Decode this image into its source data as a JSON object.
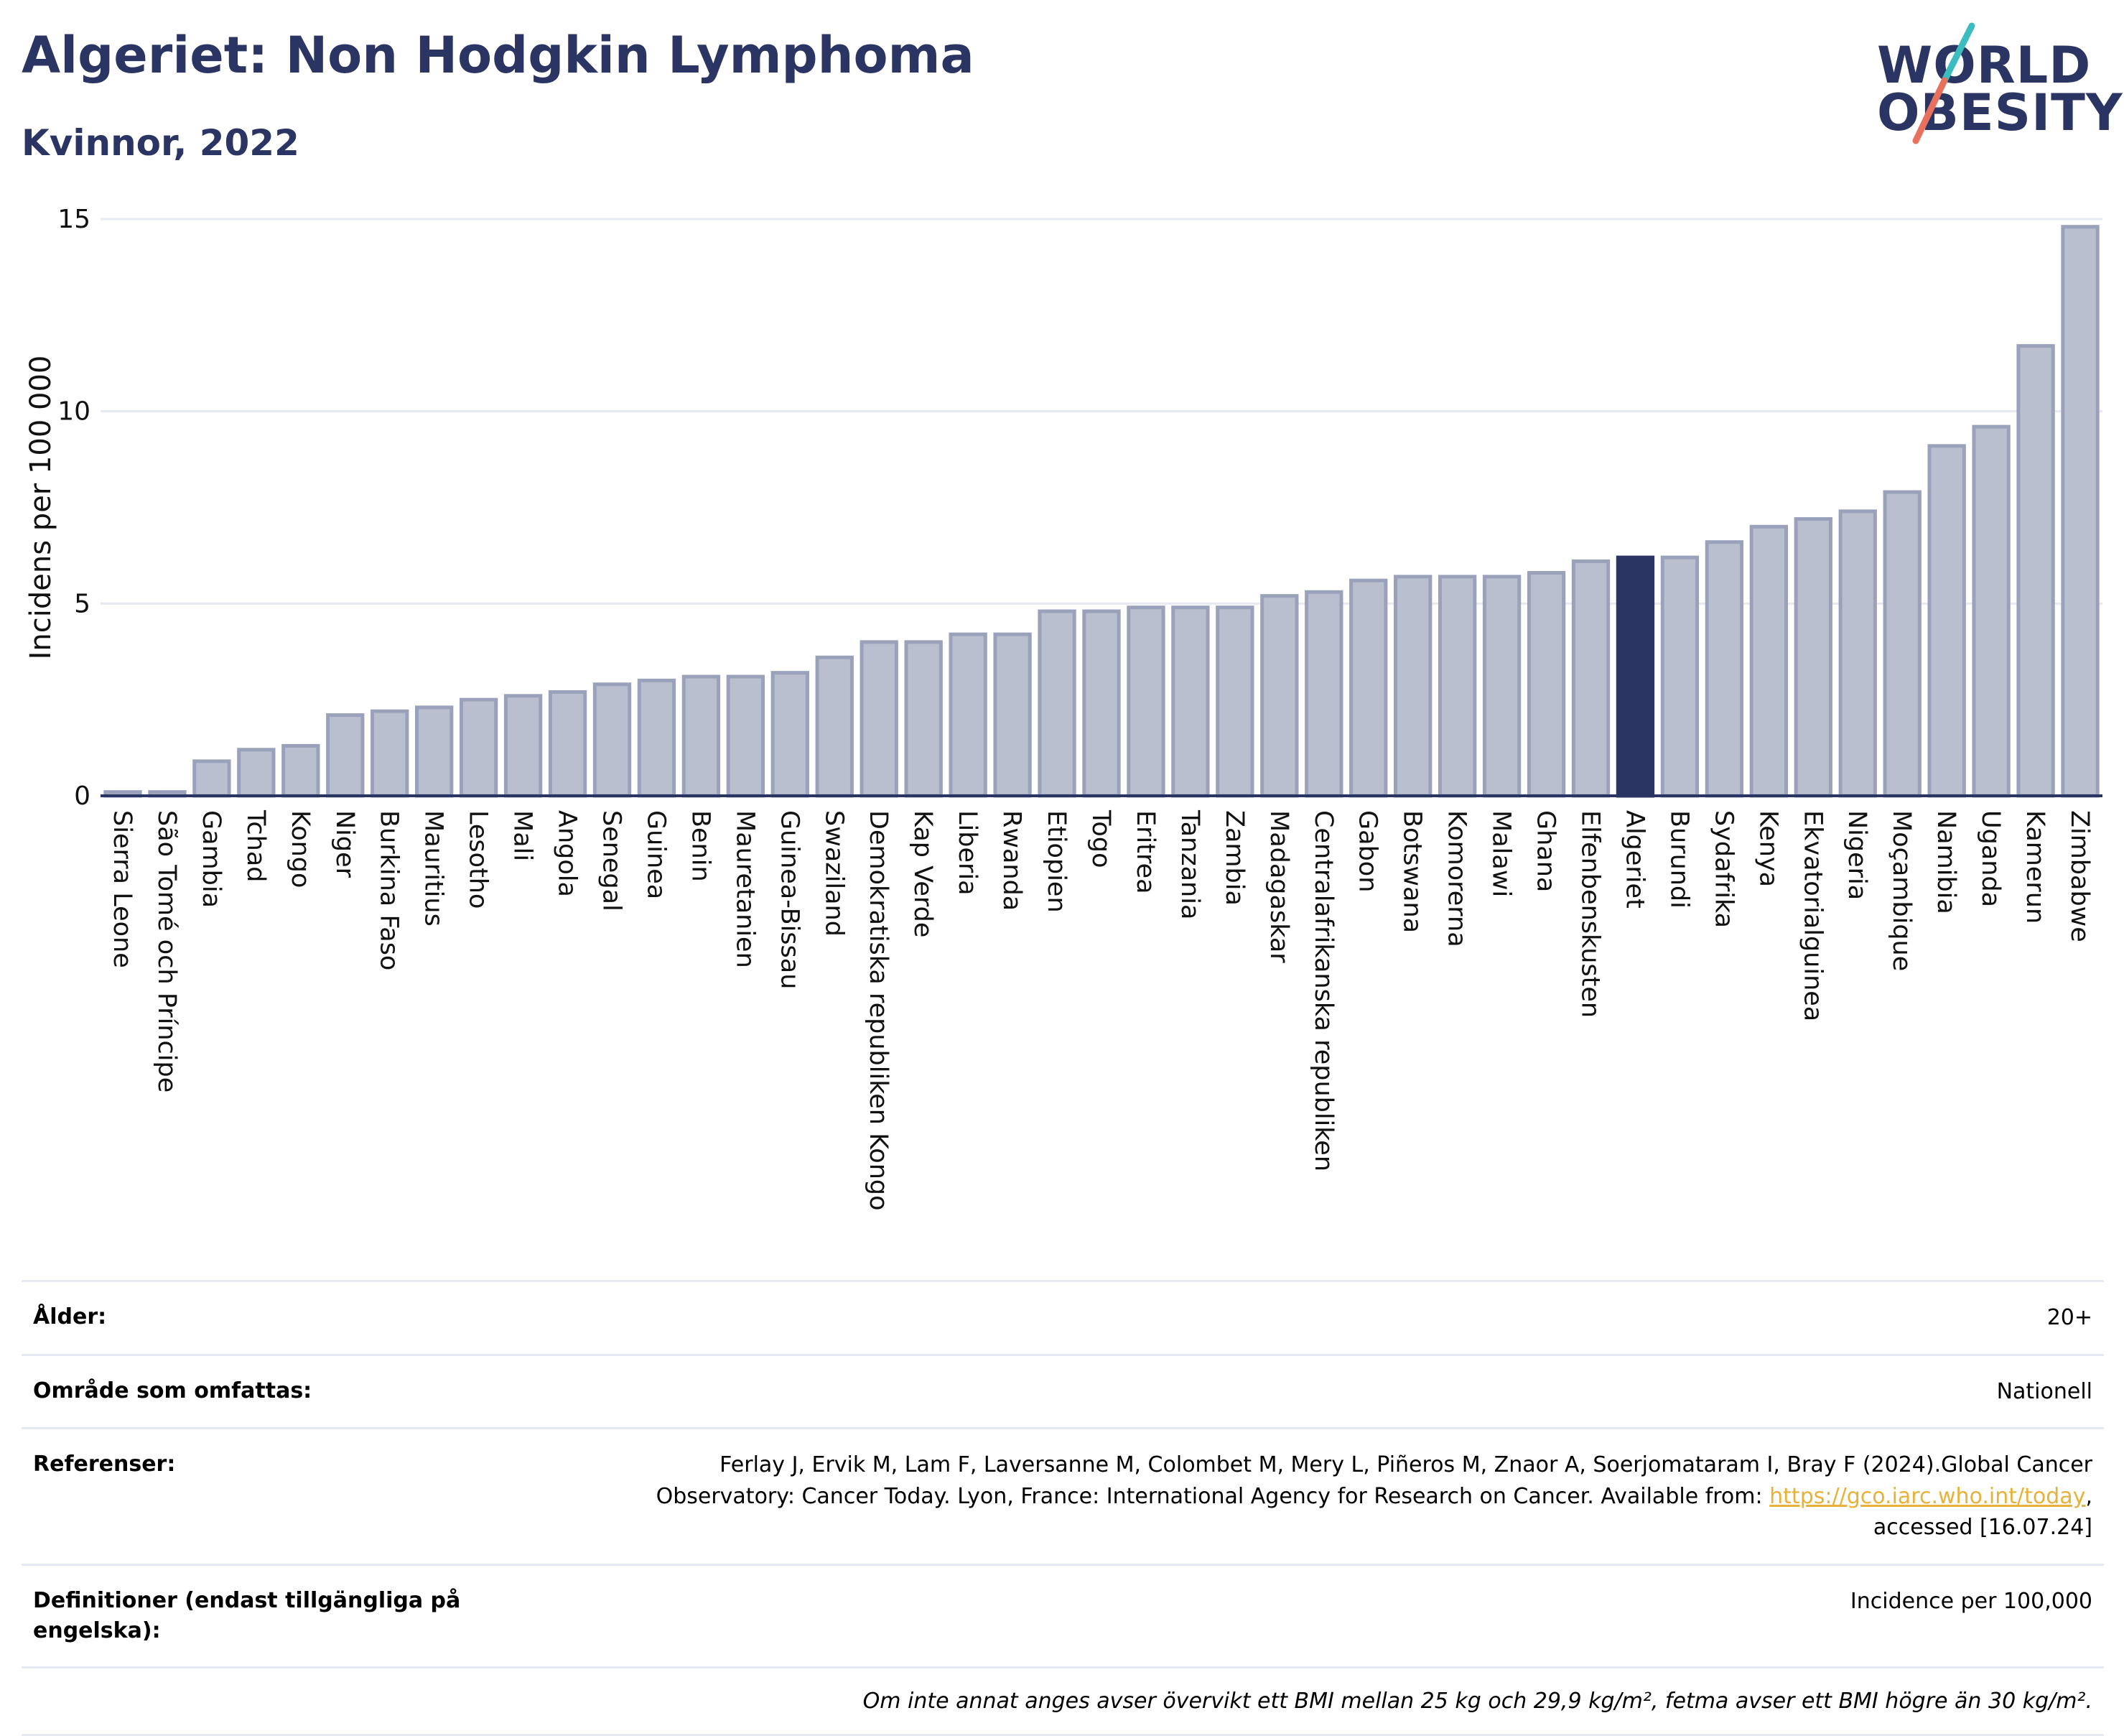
{
  "header": {
    "title": "Algeriet: Non Hodgkin Lymphoma",
    "subtitle": "Kvinnor, 2022"
  },
  "logo": {
    "line1": "WORLD",
    "line2": "OBESITY",
    "slash_colors": [
      "#3bbdbf",
      "#e8715d"
    ]
  },
  "chart_data": {
    "type": "bar",
    "ylabel": "Incidens per 100 000",
    "ylim": [
      0,
      15
    ],
    "yticks": [
      0,
      5,
      10,
      15
    ],
    "grid": true,
    "highlight": "Algeriet",
    "colors": {
      "bar": "#b9bfce",
      "bar_edge": "#9aa2bb",
      "highlight": "#2b3563",
      "grid": "#e6e9f2",
      "axis": "#2b3563"
    },
    "categories": [
      "Sierra Leone",
      "São Tomé och Príncipe",
      "Gambia",
      "Tchad",
      "Kongo",
      "Niger",
      "Burkina Faso",
      "Mauritius",
      "Lesotho",
      "Mali",
      "Angola",
      "Senegal",
      "Guinea",
      "Benin",
      "Mauretanien",
      "Guinea-Bissau",
      "Swaziland",
      "Demokratiska republiken Kongo",
      "Kap Verde",
      "Liberia",
      "Rwanda",
      "Etiopien",
      "Togo",
      "Eritrea",
      "Tanzania",
      "Zambia",
      "Madagaskar",
      "Centralafrikanska republiken",
      "Gabon",
      "Botswana",
      "Komorerna",
      "Malawi",
      "Ghana",
      "Elfenbenskusten",
      "Algeriet",
      "Burundi",
      "Sydafrika",
      "Kenya",
      "Ekvatorialguinea",
      "Nigeria",
      "Moçambique",
      "Namibia",
      "Uganda",
      "Kamerun",
      "Zimbabwe"
    ],
    "values": [
      0.1,
      0.1,
      0.9,
      1.2,
      1.3,
      2.1,
      2.2,
      2.3,
      2.5,
      2.6,
      2.7,
      2.9,
      3.0,
      3.1,
      3.1,
      3.2,
      3.6,
      4.0,
      4.0,
      4.2,
      4.2,
      4.8,
      4.8,
      4.9,
      4.9,
      4.9,
      5.2,
      5.3,
      5.6,
      5.7,
      5.7,
      5.7,
      5.8,
      6.1,
      6.2,
      6.2,
      6.6,
      7.0,
      7.2,
      7.4,
      7.9,
      9.1,
      9.6,
      11.7,
      14.8
    ]
  },
  "info": {
    "age_label": "Ålder:",
    "age_value": "20+",
    "area_label": "Område som omfattas:",
    "area_value": "Nationell",
    "refs_label": "Referenser:",
    "refs_text_1": "Ferlay J, Ervik M, Lam F, Laversanne M, Colombet M, Mery L, Piñeros M, Znaor A, Soerjomataram I, Bray F (2024).Global Cancer",
    "refs_text_2": "Observatory: Cancer Today. Lyon, France: International Agency for Research on Cancer. Available from:",
    "refs_link": "https://gco.iarc.who.int/today",
    "refs_comma": ",",
    "refs_text_3": "accessed [16.07.24]",
    "defs_label": "Definitioner (endast tillgängliga på engelska):",
    "defs_value": "Incidence per 100,000",
    "note": "Om inte annat anges avser övervikt ett BMI mellan 25 kg och 29,9 kg/m², fetma avser ett BMI högre än 30 kg/m²."
  }
}
